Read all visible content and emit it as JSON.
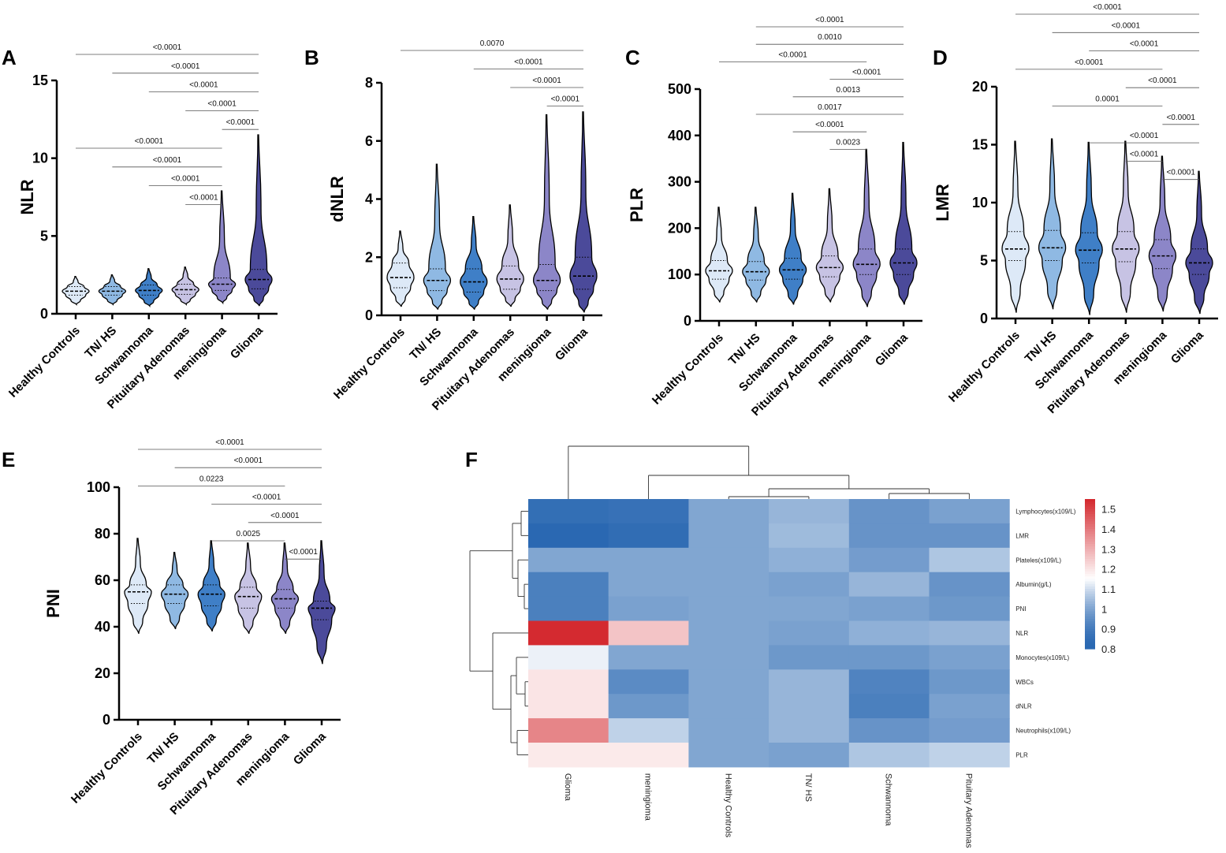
{
  "colors": {
    "groups": [
      "#dde9f7",
      "#8fb9e3",
      "#3f7fc7",
      "#c7c3e4",
      "#8c86c8",
      "#4b4a9a"
    ],
    "heat_low": "#2a68b2",
    "heat_mid": "#ffffff",
    "heat_high": "#d42a30"
  },
  "chart_data": [
    {
      "panel": "A",
      "type": "violin",
      "ylabel": "NLR",
      "categories": [
        "Healthy Controls",
        "TN/ HS",
        "Schwannoma",
        "Pituitary Adenomas",
        "meningioma",
        "Glioma"
      ],
      "ylim": [
        0,
        15
      ],
      "yticks": [
        0,
        5,
        10,
        15
      ],
      "ytick_labels": [
        "0",
        "5",
        "10",
        "15"
      ],
      "violins": [
        {
          "min": 0.6,
          "q1": 1.2,
          "median": 1.45,
          "q3": 1.75,
          "max": 2.4
        },
        {
          "min": 0.6,
          "q1": 1.2,
          "median": 1.45,
          "q3": 1.75,
          "max": 2.5
        },
        {
          "min": 0.5,
          "q1": 1.2,
          "median": 1.5,
          "q3": 1.85,
          "max": 2.9
        },
        {
          "min": 0.6,
          "q1": 1.25,
          "median": 1.55,
          "q3": 1.9,
          "max": 3.0
        },
        {
          "min": 0.7,
          "q1": 1.5,
          "median": 1.9,
          "q3": 2.3,
          "max": 7.9
        },
        {
          "min": 0.5,
          "q1": 1.6,
          "median": 2.2,
          "q3": 2.85,
          "max": 11.5
        }
      ],
      "comparisons": [
        {
          "label": "<0.0001",
          "from": 0,
          "to": 5
        },
        {
          "label": "<0.0001",
          "from": 1,
          "to": 5
        },
        {
          "label": "<0.0001",
          "from": 2,
          "to": 5
        },
        {
          "label": "<0.0001",
          "from": 3,
          "to": 5
        },
        {
          "label": "<0.0001",
          "from": 4,
          "to": 5
        },
        {
          "label": "<0.0001",
          "from": 0,
          "to": 4
        },
        {
          "label": "<0.0001",
          "from": 1,
          "to": 4
        },
        {
          "label": "<0.0001",
          "from": 2,
          "to": 4
        },
        {
          "label": "<0.0001",
          "from": 3,
          "to": 4
        }
      ]
    },
    {
      "panel": "B",
      "type": "violin",
      "ylabel": "dNLR",
      "categories": [
        "Healthy Controls",
        "TN/ HS",
        "Schwannoma",
        "Pituitary Adenomas",
        "meningioma",
        "Glioma"
      ],
      "ylim": [
        0,
        8
      ],
      "yticks": [
        0,
        2,
        4,
        6,
        8
      ],
      "ytick_labels": [
        "0",
        "2",
        "4",
        "6",
        "8"
      ],
      "violins": [
        {
          "min": 0.3,
          "q1": 0.95,
          "median": 1.3,
          "q3": 1.8,
          "max": 2.9
        },
        {
          "min": 0.2,
          "q1": 0.85,
          "median": 1.2,
          "q3": 1.6,
          "max": 5.2
        },
        {
          "min": 0.2,
          "q1": 0.8,
          "median": 1.15,
          "q3": 1.6,
          "max": 3.4
        },
        {
          "min": 0.3,
          "q1": 0.9,
          "median": 1.25,
          "q3": 1.7,
          "max": 3.8
        },
        {
          "min": 0.2,
          "q1": 0.85,
          "median": 1.2,
          "q3": 1.75,
          "max": 6.9
        },
        {
          "min": 0.1,
          "q1": 0.9,
          "median": 1.35,
          "q3": 2.0,
          "max": 7.0
        }
      ],
      "comparisons": [
        {
          "label": "0.0070",
          "from": 0,
          "to": 5
        },
        {
          "label": "<0.0001",
          "from": 2,
          "to": 5
        },
        {
          "label": "<0.0001",
          "from": 3,
          "to": 5
        },
        {
          "label": "<0.0001",
          "from": 4,
          "to": 5
        }
      ]
    },
    {
      "panel": "C",
      "type": "violin",
      "ylabel": "PLR",
      "categories": [
        "Healthy Controls",
        "TN/ HS",
        "Schwannoma",
        "Pituitary Adenomas",
        "meningioma",
        "Glioma"
      ],
      "ylim": [
        0,
        500
      ],
      "yticks": [
        0,
        100,
        200,
        300,
        400,
        500
      ],
      "ytick_labels": [
        "0",
        "100",
        "200",
        "300",
        "400",
        "500"
      ],
      "violins": [
        {
          "min": 40,
          "q1": 90,
          "median": 108,
          "q3": 130,
          "max": 245
        },
        {
          "min": 40,
          "q1": 88,
          "median": 106,
          "q3": 128,
          "max": 245
        },
        {
          "min": 35,
          "q1": 90,
          "median": 110,
          "q3": 135,
          "max": 275
        },
        {
          "min": 40,
          "q1": 95,
          "median": 115,
          "q3": 140,
          "max": 285
        },
        {
          "min": 30,
          "q1": 100,
          "median": 122,
          "q3": 155,
          "max": 370
        },
        {
          "min": 35,
          "q1": 100,
          "median": 125,
          "q3": 155,
          "max": 385
        }
      ],
      "comparisons": [
        {
          "label": "<0.0001",
          "from": 1,
          "to": 5
        },
        {
          "label": "0.0010",
          "from": 1,
          "to": 5
        },
        {
          "label": "<0.0001",
          "from": 0,
          "to": 4
        },
        {
          "label": "<0.0001",
          "from": 3,
          "to": 5
        },
        {
          "label": "0.0013",
          "from": 2,
          "to": 5
        },
        {
          "label": "0.0017",
          "from": 1,
          "to": 5
        },
        {
          "label": "<0.0001",
          "from": 2,
          "to": 4
        },
        {
          "label": "0.0023",
          "from": 3,
          "to": 4
        }
      ]
    },
    {
      "panel": "D",
      "type": "violin",
      "ylabel": "LMR",
      "categories": [
        "Healthy Controls",
        "TN/ HS",
        "Schwannoma",
        "Pituitary Adenomas",
        "meningioma",
        "Glioma"
      ],
      "ylim": [
        0,
        20
      ],
      "yticks": [
        0,
        5,
        10,
        15,
        20
      ],
      "ytick_labels": [
        "0",
        "5",
        "10",
        "15",
        "20"
      ],
      "violins": [
        {
          "min": 0.5,
          "q1": 5.0,
          "median": 6.0,
          "q3": 7.5,
          "max": 15.3
        },
        {
          "min": 0.8,
          "q1": 5.0,
          "median": 6.1,
          "q3": 7.6,
          "max": 15.5
        },
        {
          "min": 0.3,
          "q1": 4.8,
          "median": 5.9,
          "q3": 7.4,
          "max": 15.2
        },
        {
          "min": 0.5,
          "q1": 4.9,
          "median": 6.0,
          "q3": 7.5,
          "max": 15.3
        },
        {
          "min": 0.6,
          "q1": 4.3,
          "median": 5.4,
          "q3": 6.8,
          "max": 14.0
        },
        {
          "min": 0.4,
          "q1": 3.8,
          "median": 4.8,
          "q3": 6.0,
          "max": 12.7
        }
      ],
      "comparisons": [
        {
          "label": "<0.0001",
          "from": 0,
          "to": 5
        },
        {
          "label": "<0.0001",
          "from": 1,
          "to": 5
        },
        {
          "label": "<0.0001",
          "from": 2,
          "to": 5
        },
        {
          "label": "<0.0001",
          "from": 0,
          "to": 4
        },
        {
          "label": "<0.0001",
          "from": 3,
          "to": 5
        },
        {
          "label": "0.0001",
          "from": 1,
          "to": 4
        },
        {
          "label": "<0.0001",
          "from": 4,
          "to": 5
        },
        {
          "label": "<0.0001",
          "from": 2,
          "to": 5
        },
        {
          "label": "<0.0001",
          "from": 3,
          "to": 4
        },
        {
          "label": "<0.0001",
          "from": 4,
          "to": 5
        }
      ]
    },
    {
      "panel": "E",
      "type": "violin",
      "ylabel": "PNI",
      "categories": [
        "Healthy Controls",
        "TN/ HS",
        "Schwannoma",
        "Pituitary Adenomas",
        "meningioma",
        "Glioma"
      ],
      "ylim": [
        0,
        100
      ],
      "yticks": [
        0,
        20,
        40,
        60,
        80,
        100
      ],
      "ytick_labels": [
        "0",
        "20",
        "40",
        "60",
        "80",
        "100"
      ],
      "violins": [
        {
          "min": 37,
          "q1": 50,
          "median": 55,
          "q3": 58,
          "max": 78
        },
        {
          "min": 39,
          "q1": 50,
          "median": 54,
          "q3": 58,
          "max": 72
        },
        {
          "min": 38,
          "q1": 49,
          "median": 54,
          "q3": 58,
          "max": 77
        },
        {
          "min": 37,
          "q1": 48,
          "median": 53,
          "q3": 57,
          "max": 76
        },
        {
          "min": 37,
          "q1": 48,
          "median": 52,
          "q3": 56,
          "max": 76
        },
        {
          "min": 24,
          "q1": 43,
          "median": 48,
          "q3": 51,
          "max": 77
        }
      ],
      "comparisons": [
        {
          "label": "<0.0001",
          "from": 0,
          "to": 5
        },
        {
          "label": "<0.0001",
          "from": 1,
          "to": 5
        },
        {
          "label": "0.0223",
          "from": 0,
          "to": 4
        },
        {
          "label": "<0.0001",
          "from": 2,
          "to": 5
        },
        {
          "label": "<0.0001",
          "from": 3,
          "to": 5
        },
        {
          "label": "0.0025",
          "from": 2,
          "to": 4
        },
        {
          "label": "<0.0001",
          "from": 4,
          "to": 5
        }
      ]
    },
    {
      "panel": "F",
      "type": "heatmap",
      "columns": [
        "Glioma",
        "meningioma",
        "Healthy Controls",
        "TN/ HS",
        "Schwannoma",
        "Pituitary Adenomas"
      ],
      "rows": [
        "Lymphocytes(x109/L)",
        "LMR",
        "Plateles(x109/L)",
        "Albumin(g/L)",
        "PNI",
        "NLR",
        "Monocytes(x109/L)",
        "WBCs",
        "dNLR",
        "Neutrophils(x109/L)",
        "PLR"
      ],
      "values": [
        [
          0.85,
          0.86,
          1.0,
          1.03,
          0.96,
          0.99
        ],
        [
          0.79,
          0.84,
          1.0,
          1.04,
          0.96,
          0.96
        ],
        [
          1.0,
          1.0,
          1.0,
          1.02,
          0.98,
          1.06
        ],
        [
          0.91,
          1.0,
          1.0,
          0.99,
          1.03,
          0.96
        ],
        [
          0.91,
          0.99,
          1.0,
          1.0,
          0.99,
          0.97
        ],
        [
          1.56,
          1.26,
          1.0,
          0.99,
          1.02,
          1.03
        ],
        [
          1.13,
          1.0,
          1.0,
          0.97,
          0.97,
          0.99
        ],
        [
          1.2,
          0.94,
          1.0,
          1.03,
          0.92,
          0.97
        ],
        [
          1.2,
          0.97,
          1.0,
          1.03,
          0.91,
          0.99
        ],
        [
          1.38,
          1.08,
          1.0,
          1.03,
          0.96,
          0.98
        ],
        [
          1.19,
          1.19,
          1.0,
          0.99,
          1.06,
          1.08
        ]
      ],
      "colorbar": {
        "min": 0.8,
        "max": 1.55,
        "ticks": [
          "1.5",
          "1.4",
          "1.3",
          "1.2",
          "1.1",
          "1",
          "0.9",
          "0.8"
        ]
      }
    }
  ]
}
